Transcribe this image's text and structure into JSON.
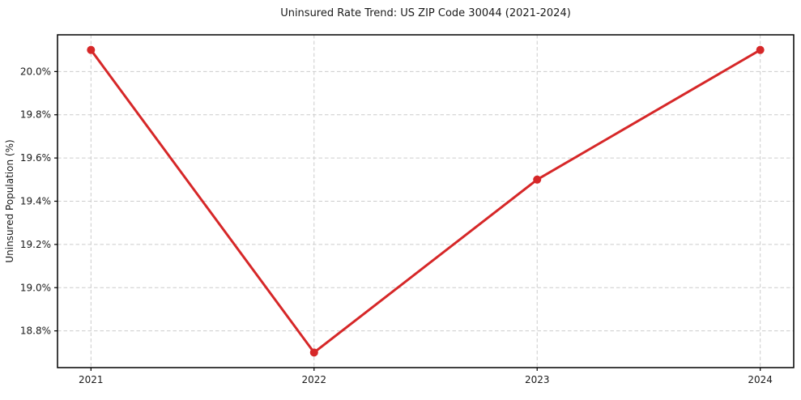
{
  "chart_data": {
    "type": "line",
    "title": "Uninsured Rate Trend: US ZIP Code 30044 (2021-2024)",
    "xlabel": "",
    "ylabel": "Uninsured Population (%)",
    "x": [
      2021,
      2022,
      2023,
      2024
    ],
    "x_tick_labels": [
      "2021",
      "2022",
      "2023",
      "2024"
    ],
    "values": [
      20.1,
      18.7,
      19.5,
      20.1
    ],
    "y_ticks": [
      18.8,
      19.0,
      19.2,
      19.4,
      19.6,
      19.8,
      20.0
    ],
    "y_tick_labels": [
      "18.8%",
      "19.0%",
      "19.2%",
      "19.4%",
      "19.6%",
      "19.8%",
      "20.0%"
    ],
    "xlim": [
      2020.85,
      2024.15
    ],
    "ylim": [
      18.63,
      20.17
    ],
    "grid": true,
    "grid_style": "dashed",
    "legend": "none",
    "colors": {
      "line": "#d62728",
      "marker": "#d62728",
      "grid": "#cccccc",
      "spine": "#000000",
      "text": "#1a1a1a",
      "background": "#ffffff"
    }
  }
}
